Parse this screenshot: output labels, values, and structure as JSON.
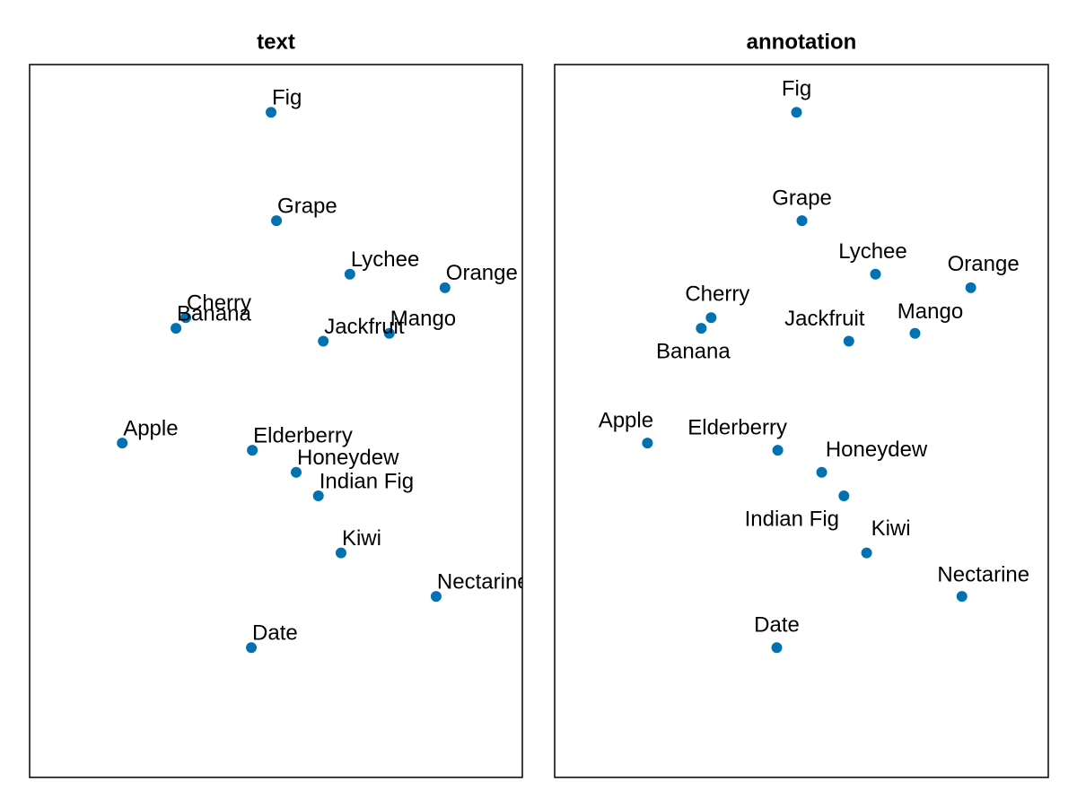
{
  "chart_data": [
    {
      "type": "scatter",
      "title": "text",
      "label_mode": "text",
      "color": "#0072b2",
      "labels": [
        "Apple",
        "Banana",
        "Cherry",
        "Date",
        "Elderberry",
        "Fig",
        "Grape",
        "Honeydew",
        "Indian Fig",
        "Jackfruit",
        "Kiwi",
        "Lychee",
        "Mango",
        "Nectarine",
        "Orange"
      ],
      "x": [
        1.88,
        2.97,
        3.17,
        4.5,
        4.52,
        4.9,
        5.01,
        5.41,
        5.86,
        5.96,
        6.32,
        6.5,
        7.3,
        8.25,
        8.43
      ],
      "values": [
        4.69,
        6.3,
        6.45,
        1.82,
        4.59,
        9.33,
        7.81,
        4.28,
        3.95,
        6.12,
        3.15,
        7.06,
        6.23,
        2.54,
        6.87
      ],
      "xlim": [
        0,
        10
      ],
      "ylim": [
        0,
        10
      ]
    },
    {
      "type": "scatter",
      "title": "annotation",
      "label_mode": "annotation",
      "color": "#0072b2",
      "labels": [
        "Apple",
        "Banana",
        "Cherry",
        "Date",
        "Elderberry",
        "Fig",
        "Grape",
        "Honeydew",
        "Indian Fig",
        "Jackfruit",
        "Kiwi",
        "Lychee",
        "Mango",
        "Nectarine",
        "Orange"
      ],
      "x": [
        1.88,
        2.97,
        3.17,
        4.5,
        4.52,
        4.9,
        5.01,
        5.41,
        5.86,
        5.96,
        6.32,
        6.5,
        7.3,
        8.25,
        8.43
      ],
      "values": [
        4.69,
        6.3,
        6.45,
        1.82,
        4.59,
        9.33,
        7.81,
        4.28,
        3.95,
        6.12,
        3.15,
        7.06,
        6.23,
        2.54,
        6.87
      ],
      "xlim": [
        0,
        10
      ],
      "ylim": [
        0,
        10
      ]
    }
  ]
}
